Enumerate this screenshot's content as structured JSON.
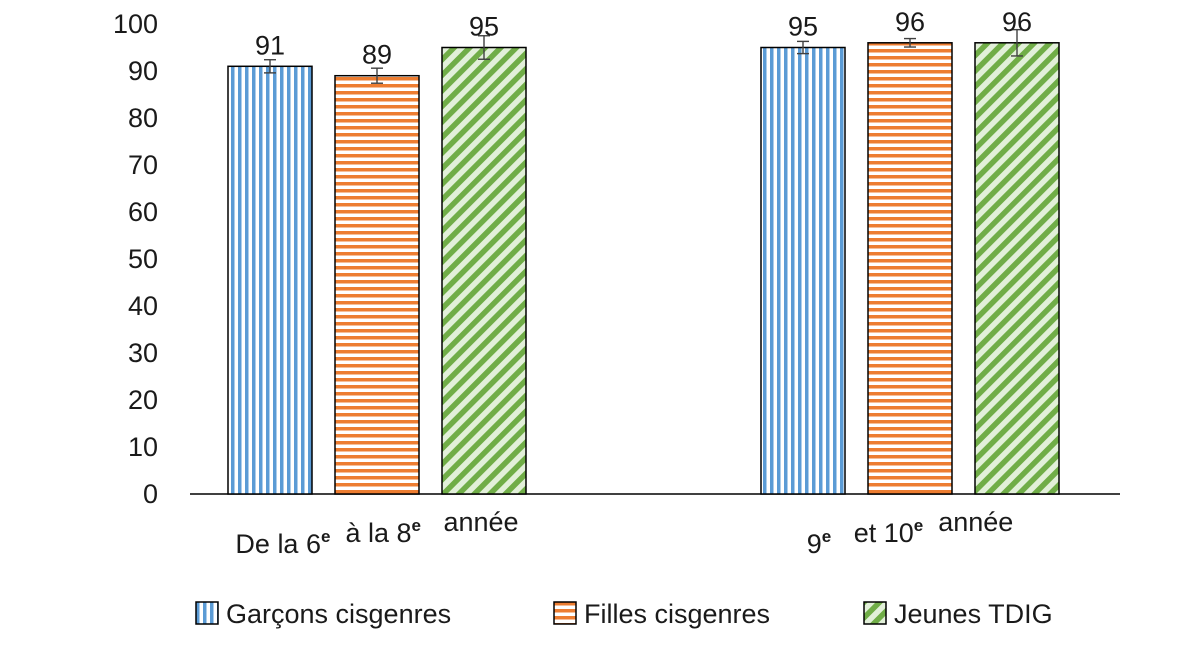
{
  "chart_data": {
    "type": "bar",
    "title": "",
    "xlabel": "",
    "ylabel": "",
    "ylim": [
      0,
      100
    ],
    "yticks": [
      0,
      10,
      20,
      30,
      40,
      50,
      60,
      70,
      80,
      90,
      100
    ],
    "grid": false,
    "legend_position": "bottom",
    "categories": [
      {
        "label": "De la 6e à la 8e année",
        "parts": [
          {
            "text": "De la 6",
            "sup": false
          },
          {
            "text": "e",
            "sup": true
          },
          {
            "text": "  à la 8",
            "sup": false
          },
          {
            "text": "e",
            "sup": true
          },
          {
            "text": "   année",
            "sup": false
          }
        ]
      },
      {
        "label": "9e et 10e année",
        "parts": [
          {
            "text": "9",
            "sup": false
          },
          {
            "text": "e",
            "sup": true
          },
          {
            "text": "   et 10",
            "sup": false
          },
          {
            "text": "e",
            "sup": true
          },
          {
            "text": "  année",
            "sup": false
          }
        ]
      }
    ],
    "series": [
      {
        "name": "Garçons cisgenres",
        "pattern": "vertical-stripes",
        "color": "#5B9BD5",
        "values": [
          91,
          95
        ],
        "labels": [
          "91",
          "95"
        ],
        "error": [
          [
            89.6,
            92.4
          ],
          [
            93.7,
            96.3
          ]
        ]
      },
      {
        "name": "Filles cisgenres",
        "pattern": "horizontal-stripes",
        "color": "#ED7D31",
        "values": [
          89,
          96
        ],
        "labels": [
          "89",
          "96"
        ],
        "error": [
          [
            87.4,
            90.6
          ],
          [
            95.1,
            96.9
          ]
        ]
      },
      {
        "name": "Jeunes TDIG",
        "pattern": "diagonal-stripes",
        "color": "#70AD47",
        "values": [
          95,
          96
        ],
        "labels": [
          "95",
          "96"
        ],
        "error": [
          [
            92.5,
            97.5
          ],
          [
            93.2,
            98.8
          ]
        ]
      }
    ]
  }
}
